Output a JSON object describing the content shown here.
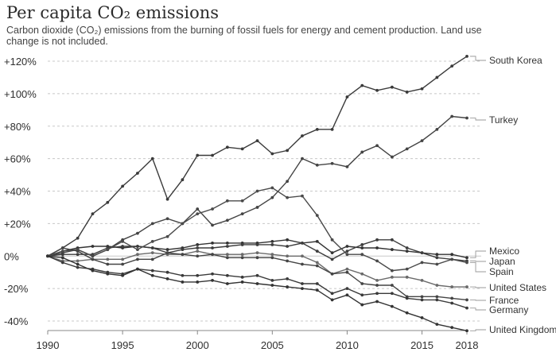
{
  "chart_data": {
    "type": "line",
    "title": "Per capita CO₂ emissions",
    "subtitle": "Carbon dioxide (CO₂) emissions from the burning of fossil fuels for energy and cement production. Land use change is not included.",
    "xlabel": "",
    "ylabel": "",
    "xlim": [
      1990,
      2018
    ],
    "ylim": [
      -45,
      125
    ],
    "grid": true,
    "legend": "direct labels at right end of lines",
    "x_ticks": [
      "1990",
      "1995",
      "2000",
      "2005",
      "2010",
      "2015",
      "2018"
    ],
    "y_ticks": [
      "+120%",
      "+100%",
      "+80%",
      "+60%",
      "+40%",
      "+20%",
      "0%",
      "-20%",
      "-40%"
    ],
    "y_tick_values": [
      120,
      100,
      80,
      60,
      40,
      20,
      0,
      -20,
      -40
    ],
    "x": [
      1990,
      1991,
      1992,
      1993,
      1994,
      1995,
      1996,
      1997,
      1998,
      1999,
      2000,
      2001,
      2002,
      2003,
      2004,
      2005,
      2006,
      2007,
      2008,
      2009,
      2010,
      2011,
      2012,
      2013,
      2014,
      2015,
      2016,
      2017,
      2018
    ],
    "series": [
      {
        "name": "South Korea",
        "values": [
          0,
          5,
          11,
          26,
          33,
          43,
          51,
          60,
          35,
          47,
          62,
          62,
          67,
          66,
          71,
          63,
          65,
          74,
          78,
          78,
          98,
          105,
          102,
          104,
          101,
          103,
          110,
          117,
          123
        ]
      },
      {
        "name": "Turkey",
        "values": [
          0,
          2,
          4,
          0,
          4,
          10,
          14,
          20,
          23,
          20,
          29,
          19,
          22,
          26,
          30,
          36,
          46,
          60,
          56,
          57,
          55,
          64,
          68,
          61,
          66,
          71,
          78,
          86,
          85
        ]
      },
      {
        "name": "Mexico",
        "values": [
          0,
          3,
          5,
          6,
          6,
          5,
          6,
          5,
          4,
          5,
          7,
          8,
          8,
          8,
          8,
          9,
          10,
          8,
          9,
          2,
          6,
          5,
          5,
          4,
          3,
          2,
          1,
          1,
          -1
        ]
      },
      {
        "name": "Japan",
        "values": [
          0,
          1,
          1,
          1,
          5,
          6,
          6,
          5,
          2,
          4,
          5,
          5,
          6,
          7,
          7,
          7,
          6,
          8,
          3,
          -2,
          3,
          7,
          10,
          10,
          5,
          2,
          -1,
          -2,
          -3
        ]
      },
      {
        "name": "Spain",
        "values": [
          0,
          3,
          4,
          0,
          4,
          9,
          4,
          9,
          12,
          20,
          26,
          29,
          34,
          34,
          40,
          42,
          36,
          37,
          25,
          10,
          1,
          1,
          -3,
          -9,
          -8,
          -4,
          -5,
          -2,
          -4
        ]
      },
      {
        "name": "United States",
        "values": [
          0,
          -3,
          -3,
          -2,
          -2,
          -2,
          1,
          2,
          1,
          1,
          3,
          1,
          1,
          1,
          2,
          1,
          0,
          0,
          -4,
          -11,
          -8,
          -11,
          -15,
          -13,
          -13,
          -15,
          -18,
          -19,
          -19
        ]
      },
      {
        "name": "France",
        "values": [
          0,
          5,
          3,
          -2,
          -5,
          -5,
          -2,
          -2,
          2,
          1,
          0,
          1,
          -1,
          -1,
          -1,
          -1,
          -3,
          -5,
          -6,
          -11,
          -10,
          -17,
          -18,
          -18,
          -25,
          -25,
          -25,
          -26,
          -27
        ]
      },
      {
        "name": "Germany",
        "values": [
          0,
          -4,
          -7,
          -8,
          -10,
          -11,
          -8,
          -9,
          -10,
          -12,
          -12,
          -11,
          -12,
          -13,
          -12,
          -15,
          -14,
          -17,
          -17,
          -23,
          -20,
          -24,
          -23,
          -23,
          -26,
          -27,
          -27,
          -29,
          -32
        ]
      },
      {
        "name": "United Kingdom",
        "values": [
          0,
          -1,
          -5,
          -9,
          -11,
          -12,
          -8,
          -12,
          -14,
          -16,
          -16,
          -15,
          -17,
          -16,
          -17,
          -18,
          -19,
          -20,
          -21,
          -27,
          -24,
          -30,
          -28,
          -31,
          -35,
          -38,
          -42,
          -44,
          -46
        ]
      }
    ]
  }
}
